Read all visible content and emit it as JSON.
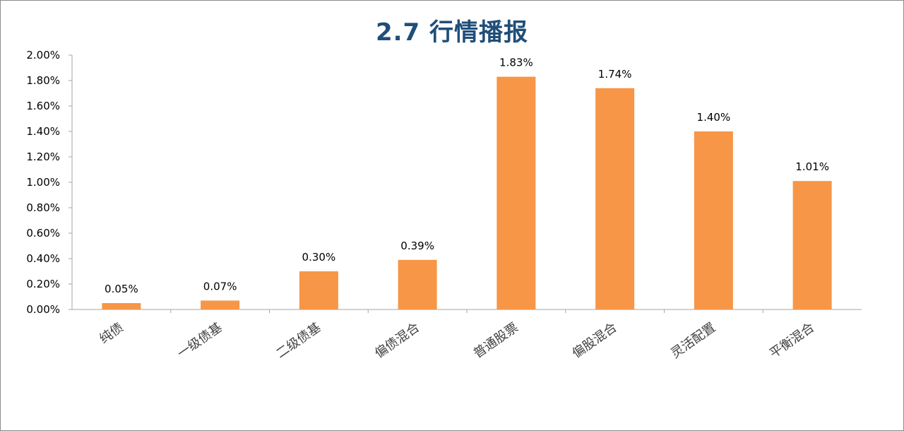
{
  "chart_data": {
    "type": "bar",
    "title": "2.7 行情播报",
    "xlabel": "",
    "ylabel": "",
    "categories": [
      "纯债",
      "一级债基",
      "二级债基",
      "偏债混合",
      "普通股票",
      "偏股混合",
      "灵活配置",
      "平衡混合"
    ],
    "values": [
      0.05,
      0.07,
      0.3,
      0.39,
      1.83,
      1.74,
      1.4,
      1.01
    ],
    "value_labels": [
      "0.05%",
      "0.07%",
      "0.30%",
      "0.39%",
      "1.83%",
      "1.74%",
      "1.40%",
      "1.01%"
    ],
    "ylim": [
      0,
      2.0
    ],
    "yticks": [
      0.0,
      0.2,
      0.4,
      0.6,
      0.8,
      1.0,
      1.2,
      1.4,
      1.6,
      1.8,
      2.0
    ],
    "ytick_labels": [
      "0.00%",
      "0.20%",
      "0.40%",
      "0.60%",
      "0.80%",
      "1.00%",
      "1.20%",
      "1.40%",
      "1.60%",
      "1.80%",
      "2.00%"
    ],
    "grid": false,
    "legend": "none",
    "bar_color": "#f79646",
    "title_color": "#1f4e79"
  }
}
